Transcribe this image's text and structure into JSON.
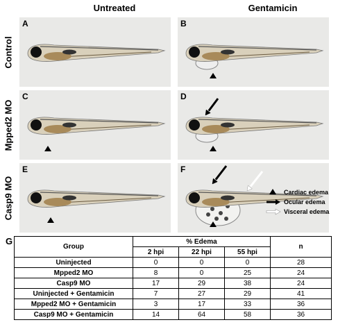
{
  "column_headers": [
    "Untreated",
    "Gentamicin"
  ],
  "row_labels": [
    "Control",
    "Mpped2 MO",
    "Casp9 MO"
  ],
  "panels": [
    "A",
    "B",
    "C",
    "D",
    "E",
    "F"
  ],
  "legend": [
    "Cardiac edema",
    "Ocular edema",
    "Visceral edema"
  ],
  "table": {
    "label": "G",
    "header": [
      "Group",
      "% Edema",
      "n"
    ],
    "subheader": [
      "2 hpi",
      "22 hpi",
      "55 hpi"
    ],
    "rows": [
      [
        "Uninjected",
        0,
        0,
        0,
        28
      ],
      [
        "Mpped2 MO",
        8,
        0,
        25,
        24
      ],
      [
        "Casp9 MO",
        17,
        29,
        38,
        24
      ],
      [
        "Uninjected + Gentamicin",
        7,
        27,
        29,
        41
      ],
      [
        "Mpped2 MO + Gentamicin",
        3,
        17,
        33,
        36
      ],
      [
        "Casp9 MO + Gentamicin",
        14,
        64,
        58,
        36
      ]
    ]
  }
}
